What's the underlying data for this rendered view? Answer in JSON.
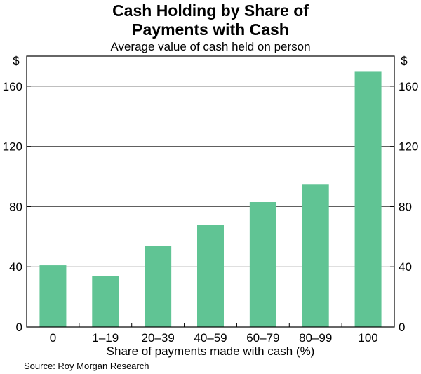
{
  "chart_data": {
    "type": "bar",
    "title_lines": [
      "Cash Holding by Share of",
      "Payments with Cash"
    ],
    "subtitle": "Average value of cash held on person",
    "xlabel": "Share of payments made with cash (%)",
    "ylabel_left": "$",
    "ylabel_right": "$",
    "categories": [
      "0",
      "1–19",
      "20–39",
      "40–59",
      "60–79",
      "80–99",
      "100"
    ],
    "values": [
      41,
      34,
      54,
      68,
      83,
      95,
      170
    ],
    "ylim": [
      0,
      180
    ],
    "yticks": [
      0,
      40,
      80,
      120,
      160
    ],
    "grid": "horizontal",
    "bar_color": "#60c494",
    "source": "Source: Roy Morgan Research"
  }
}
